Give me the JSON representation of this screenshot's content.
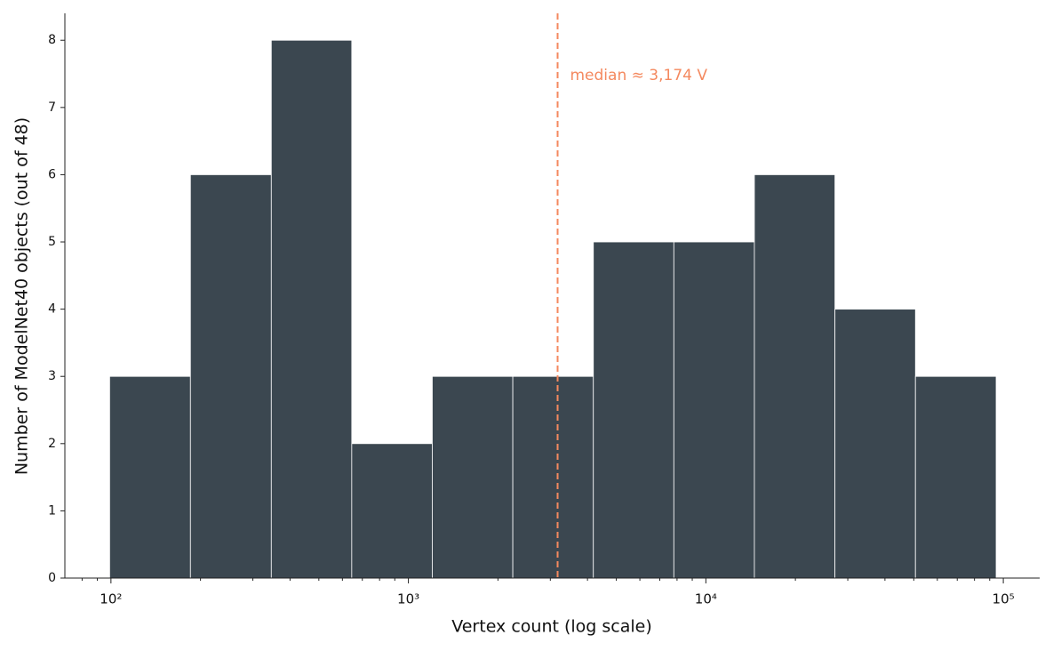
{
  "chart_data": {
    "type": "histogram",
    "xlabel": "Vertex count (log scale)",
    "ylabel": "Number of ModelNet40 objects (out of 48)",
    "bins": [
      99,
      185,
      346,
      645,
      1203,
      2244,
      4186,
      7805,
      14560,
      27160,
      50660,
      94600
    ],
    "values": [
      3,
      6,
      8,
      2,
      3,
      3,
      5,
      5,
      6,
      4,
      3
    ],
    "color": "#3b4750",
    "edgecolor": "#ffffff",
    "xscale": "log",
    "xlim": [
      70,
      132500
    ],
    "ylim": [
      0,
      8.4
    ],
    "xticks": [
      {
        "value": 100,
        "label": "10²"
      },
      {
        "value": 1000,
        "label": "10³"
      },
      {
        "value": 10000,
        "label": "10⁴"
      },
      {
        "value": 100000,
        "label": "10⁵"
      }
    ],
    "xminorticks": [
      80,
      90,
      200,
      300,
      400,
      500,
      600,
      700,
      800,
      900,
      2000,
      3000,
      4000,
      5000,
      6000,
      7000,
      8000,
      9000,
      20000,
      30000,
      40000,
      50000,
      60000,
      70000,
      80000,
      90000
    ],
    "yticks": [
      0,
      1,
      2,
      3,
      4,
      5,
      6,
      7,
      8
    ],
    "median": 3174,
    "median_label": "median ≈ 3,174 V",
    "median_color": "#f4895f"
  }
}
